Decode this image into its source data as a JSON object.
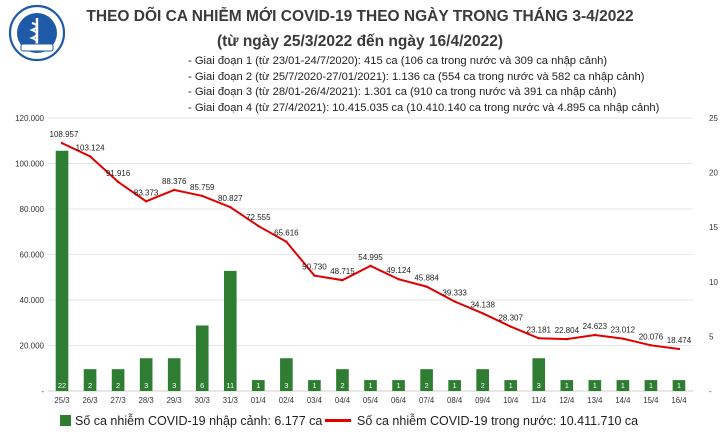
{
  "header": {
    "title": "THEO DÕI CA NHIỄM MỚI COVID-19 THEO NGÀY TRONG THÁNG 3-4/2022",
    "subtitle": "(từ ngày 25/3/2022 đến ngày 16/4/2022)",
    "logo_text": "BỘ Y TẾ",
    "logo_ribbon": "MINISTRY OF HEALTH"
  },
  "notes": [
    "- Giai đoạn 1 (từ 23/01-24/7/2020): 415 ca (106 ca trong nước và 309 ca nhập cảnh)",
    "- Giai đoạn 2 (từ 25/7/2020-27/01/2021): 1.136 ca (554 ca trong nước và 582 ca nhập cảnh)",
    "- Giai đoạn 3 (từ 28/01-26/4/2021): 1.301 ca (910 ca trong nước và 391 ca nhập cảnh)",
    "- Giai đoạn 4 (từ 27/4/2021): 10.415.035 ca (10.410.140 ca trong nước và 4.895 ca nhập cảnh)"
  ],
  "legend": {
    "bar": "Số ca nhiễm COVID-19 nhập cảnh: 6.177 ca",
    "line": "Số ca nhiễm COVID-19 trong nước: 10.411.710 ca"
  },
  "colors": {
    "bar": "#2e7d32",
    "line": "#e00000",
    "bar_label": "#ffffff",
    "grid": "#e6e6e6"
  },
  "chart_data": {
    "type": "bar+line",
    "categories": [
      "25/3",
      "26/3",
      "27/3",
      "28/3",
      "29/3",
      "30/3",
      "31/3",
      "01/4",
      "02/4",
      "03/4",
      "04/4",
      "05/4",
      "06/4",
      "07/4",
      "08/4",
      "09/4",
      "10/4",
      "11/4",
      "12/4",
      "13/4",
      "14/4",
      "15/4",
      "16/4"
    ],
    "series": [
      {
        "name": "Số ca nhiễm COVID-19 nhập cảnh",
        "type": "bar",
        "axis": "right",
        "values": [
          22,
          2,
          2,
          3,
          3,
          6,
          11,
          1,
          3,
          1,
          2,
          1,
          1,
          2,
          1,
          2,
          1,
          3,
          1,
          1,
          1,
          1,
          1
        ]
      },
      {
        "name": "Số ca nhiễm COVID-19 trong nước",
        "type": "line",
        "axis": "left",
        "values": [
          108957,
          103124,
          91916,
          83373,
          88376,
          85759,
          80827,
          72555,
          65616,
          50730,
          48715,
          54995,
          49124,
          45884,
          39333,
          34138,
          28307,
          23181,
          22804,
          24623,
          23012,
          20076,
          18474
        ],
        "labels": [
          "108.957",
          "103.124",
          "91.916",
          "83.373",
          "88.376",
          "85.759",
          "80.827",
          "72.555",
          "65.616",
          "50.730",
          "48.715",
          "54.995",
          "49.124",
          "45.884",
          "39.333",
          "34.138",
          "28.307",
          "23.181",
          "22.804",
          "24.623",
          "23.012",
          "20.076",
          "18.474"
        ]
      }
    ],
    "y_left": {
      "min": 0,
      "max": 120000,
      "ticks": [
        0,
        20000,
        40000,
        60000,
        80000,
        100000,
        120000
      ],
      "tick_labels": [
        "-",
        "20.000",
        "40.000",
        "60.000",
        "80.000",
        "100.000",
        "120.000"
      ]
    },
    "y_right": {
      "min": 0,
      "max": 25,
      "ticks": [
        0,
        5,
        10,
        15,
        20,
        25
      ],
      "tick_labels": [
        "-",
        "5",
        "10",
        "15",
        "20",
        "25"
      ]
    },
    "grid": true,
    "legend_position": "bottom"
  }
}
